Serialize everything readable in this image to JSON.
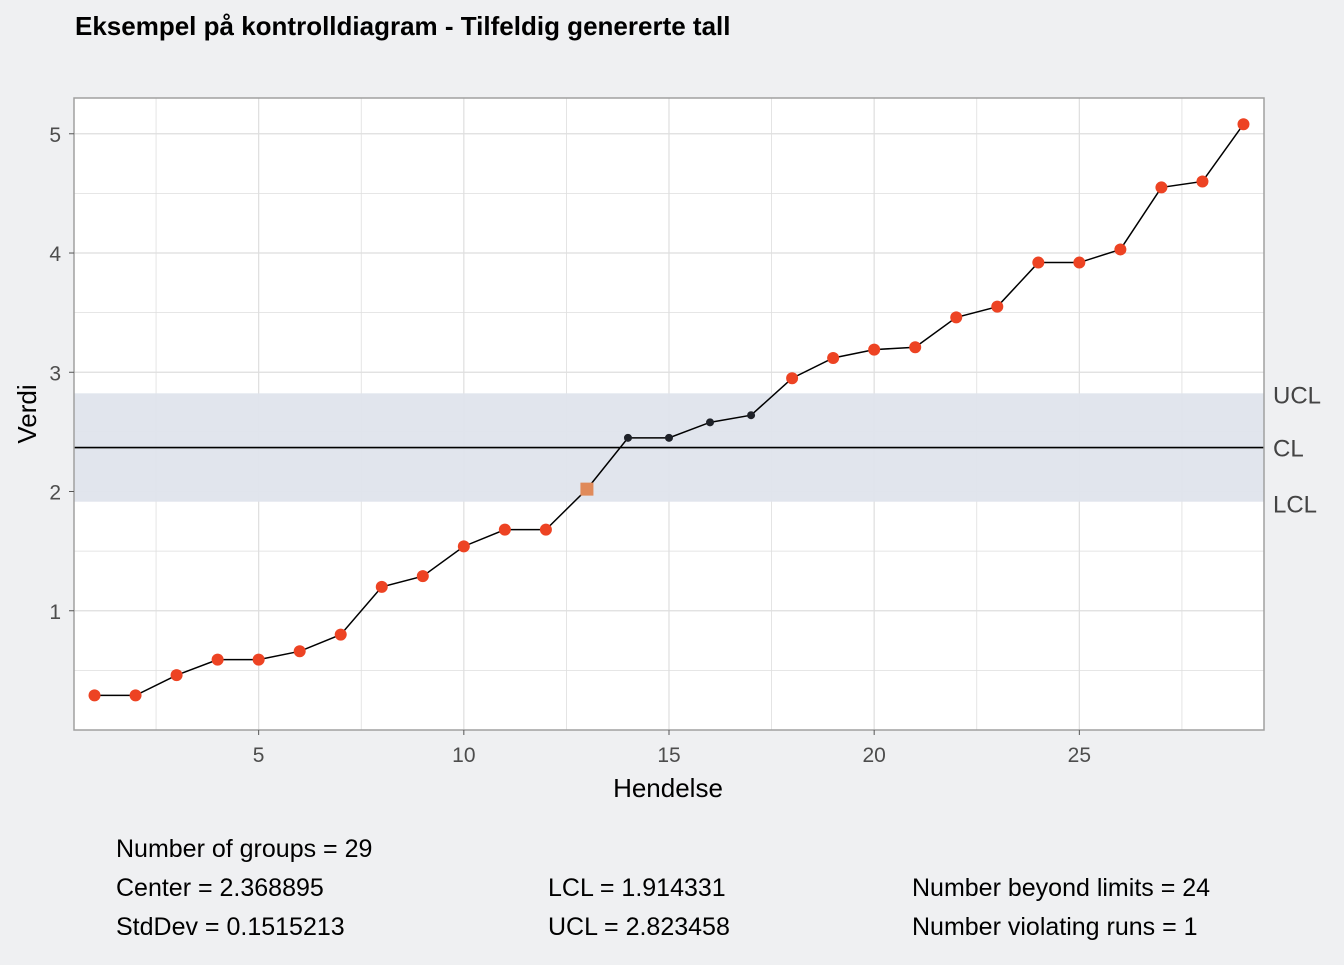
{
  "chart_data": {
    "type": "line",
    "title": "Eksempel på kontrolldiagram - Tilfeldig genererte tall",
    "xlabel": "Hendelse",
    "ylabel": "Verdi",
    "xlim": [
      0.5,
      29.5
    ],
    "ylim": [
      0.0,
      5.3
    ],
    "xticks": [
      5,
      10,
      15,
      20,
      25
    ],
    "yticks": [
      1,
      2,
      3,
      4,
      5
    ],
    "grid": true,
    "x": [
      1,
      2,
      3,
      4,
      5,
      6,
      7,
      8,
      9,
      10,
      11,
      12,
      13,
      14,
      15,
      16,
      17,
      18,
      19,
      20,
      21,
      22,
      23,
      24,
      25,
      26,
      27,
      28,
      29
    ],
    "values": [
      0.29,
      0.29,
      0.46,
      0.59,
      0.59,
      0.66,
      0.8,
      1.2,
      1.29,
      1.54,
      1.68,
      1.68,
      2.02,
      2.45,
      2.45,
      2.58,
      2.64,
      2.95,
      3.12,
      3.19,
      3.21,
      3.46,
      3.55,
      3.92,
      3.92,
      4.03,
      4.55,
      4.6,
      5.08
    ],
    "beyond_limits_index": [
      1,
      2,
      3,
      4,
      5,
      6,
      7,
      8,
      9,
      10,
      11,
      12,
      18,
      19,
      20,
      21,
      22,
      23,
      24,
      25,
      26,
      27,
      28,
      29
    ],
    "violating_runs_index": [
      13
    ],
    "limits": {
      "center": 2.368895,
      "lcl": 1.914331,
      "ucl": 2.823458,
      "labels": {
        "ucl": "UCL",
        "cl": "CL",
        "lcl": "LCL"
      }
    },
    "colors": {
      "background": "#eff0f2",
      "panel": "#ffffff",
      "band": "#dfe4ec",
      "center_line": "#000000",
      "line": "#000000",
      "point_normal": "#1f2229",
      "point_beyond": "#ed4323",
      "point_runs": "#e08a5a",
      "grid": "#dedede",
      "border": "#a0a0a0"
    },
    "stats": {
      "groups": "Number of groups = 29",
      "center": "Center = 2.368895",
      "stddev": "StdDev = 0.1515213",
      "lcl": "LCL = 1.914331",
      "ucl": "UCL = 2.823458",
      "beyond": "Number beyond limits = 24",
      "runs": "Number violating runs = 1"
    }
  }
}
